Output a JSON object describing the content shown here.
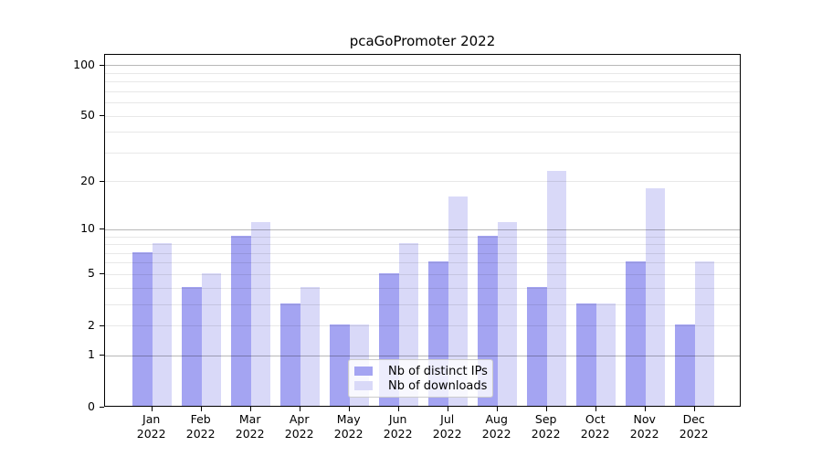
{
  "chart_data": {
    "type": "bar",
    "title": "pcaGoPromoter 2022",
    "categories": [
      "Jan 2022",
      "Feb 2022",
      "Mar 2022",
      "Apr 2022",
      "May 2022",
      "Jun 2022",
      "Jul 2022",
      "Aug 2022",
      "Sep 2022",
      "Oct 2022",
      "Nov 2022",
      "Dec 2022"
    ],
    "series": [
      {
        "name": "Nb of distinct IPs",
        "color": "#a4a4f2",
        "values": [
          7,
          4,
          9,
          3,
          2,
          5,
          6,
          9,
          4,
          3,
          6,
          2
        ]
      },
      {
        "name": "Nb of downloads",
        "color": "#d9d9f8",
        "values": [
          8,
          5,
          11,
          4,
          2,
          8,
          16,
          11,
          23,
          3,
          18,
          6
        ]
      }
    ],
    "xlabel": "",
    "ylabel": "",
    "yscale": "log1p",
    "ylim": [
      0,
      115
    ],
    "y_tick_values": [
      0,
      1,
      2,
      5,
      10,
      20,
      50,
      100
    ],
    "y_major_gridlines": [
      1,
      10,
      100
    ],
    "y_minor_gridlines": [
      2,
      3,
      4,
      5,
      6,
      7,
      8,
      9,
      20,
      30,
      40,
      50,
      60,
      70,
      80,
      90
    ],
    "grid": "on, drawn over bars",
    "legend_position": "lower center inside plot",
    "colors": {
      "background": "#ffffff",
      "spine": "#000000",
      "major_grid": "#c2c2c2",
      "minor_grid": "#ececec",
      "legend_border": "#cccccc"
    }
  }
}
